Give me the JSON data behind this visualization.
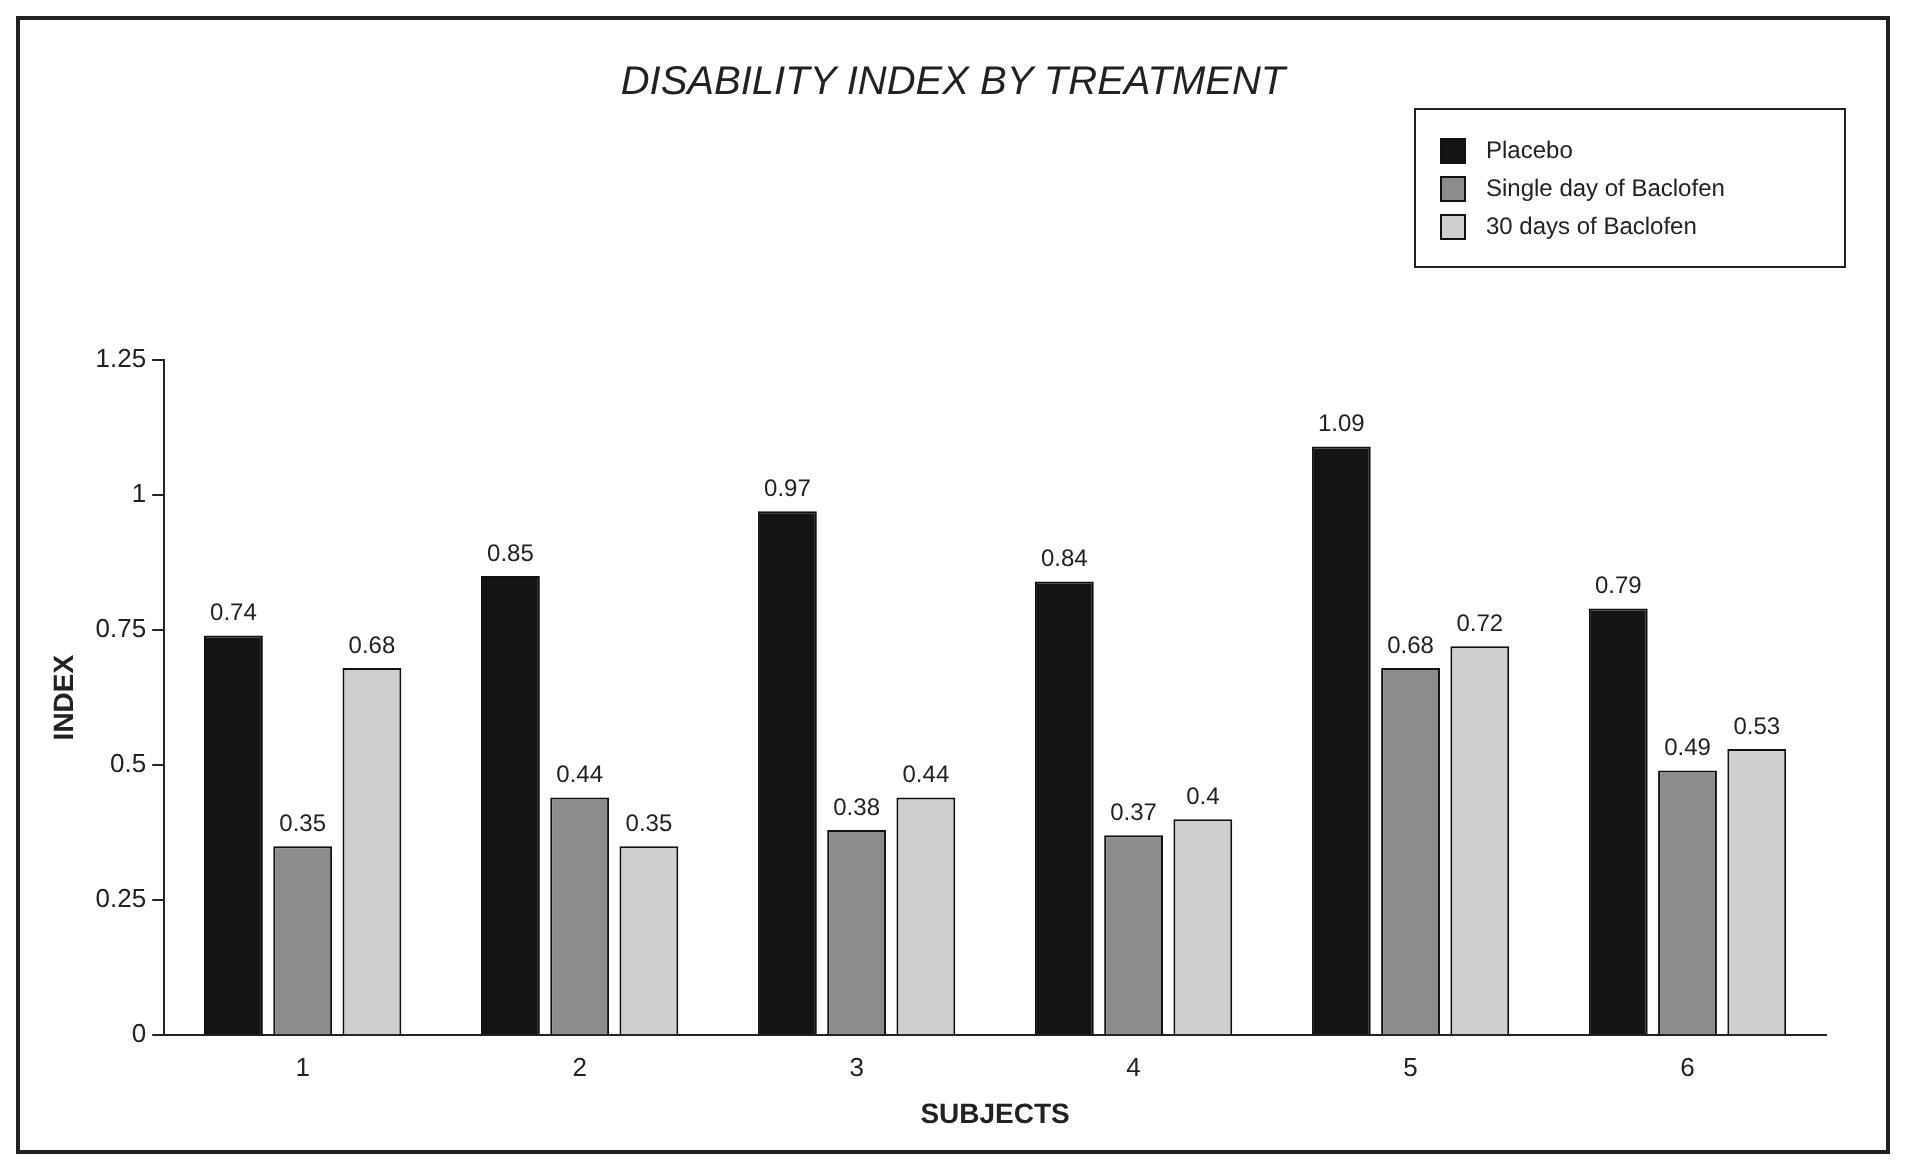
{
  "chart_data": {
    "type": "bar",
    "title": "DISABILITY INDEX BY TREATMENT",
    "xlabel": "SUBJECTS",
    "ylabel": "INDEX",
    "categories": [
      "1",
      "2",
      "3",
      "4",
      "5",
      "6"
    ],
    "series": [
      {
        "name": "Placebo",
        "color": "#141414",
        "values": [
          0.74,
          0.85,
          0.97,
          0.84,
          1.09,
          0.79
        ]
      },
      {
        "name": "Single day of Baclofen",
        "color": "#8c8c8c",
        "values": [
          0.35,
          0.44,
          0.38,
          0.37,
          0.68,
          0.49
        ]
      },
      {
        "name": "30 days of Baclofen",
        "color": "#cfcfcf",
        "values": [
          0.68,
          0.35,
          0.44,
          0.4,
          0.72,
          0.53
        ]
      }
    ],
    "ylim": [
      0,
      1.25
    ],
    "yticks": [
      0,
      0.25,
      0.5,
      0.75,
      1,
      1.25
    ],
    "grid": false,
    "legend": "top right",
    "data_labels": true
  }
}
